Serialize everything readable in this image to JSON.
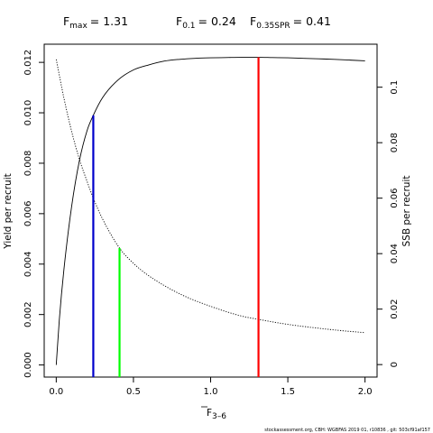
{
  "chart_data": {
    "type": "line",
    "title": {
      "fmax_label": "F",
      "fmax_sub": "max",
      "fmax_value": "= 1.31",
      "f01_label": "F",
      "f01_sub": "0.1",
      "f01_value": "= 0.24",
      "f35_label": "F",
      "f35_sub": "0.35SPR",
      "f35_value": "= 0.41"
    },
    "xlabel": "F",
    "xlabel_sub": "3–6",
    "ylabel_left": "Yield per recruit",
    "ylabel_right": "SSB per recruit",
    "xlim": [
      -0.078,
      2.078
    ],
    "ylim_left": [
      -0.00048,
      0.01272
    ],
    "ylim_right": [
      -0.0045,
      0.1155
    ],
    "x_ticks": [
      "0.0",
      "0.5",
      "1.0",
      "1.5",
      "2.0"
    ],
    "y_left_ticks": [
      "0.000",
      "0.002",
      "0.004",
      "0.006",
      "0.008",
      "0.010",
      "0.012"
    ],
    "y_right_ticks": [
      "0",
      "0.02",
      "0.04",
      "0.06",
      "0.08",
      "0.1"
    ],
    "series": [
      {
        "name": "Yield per recruit",
        "axis": "left",
        "style": "solid",
        "color": "#000000",
        "x": [
          0,
          0.02,
          0.05,
          0.1,
          0.15,
          0.2,
          0.24,
          0.3,
          0.4,
          0.5,
          0.6,
          0.7,
          0.8,
          0.9,
          1.0,
          1.1,
          1.2,
          1.31,
          1.4,
          1.5,
          1.6,
          1.7,
          1.8,
          1.9,
          2.0
        ],
        "values": [
          0.0,
          0.0018,
          0.0038,
          0.0063,
          0.0081,
          0.0093,
          0.0099,
          0.0106,
          0.0113,
          0.0117,
          0.0119,
          0.01205,
          0.01212,
          0.01216,
          0.01218,
          0.01219,
          0.0122,
          0.0122,
          0.01219,
          0.01218,
          0.01216,
          0.01214,
          0.01212,
          0.01209,
          0.01206
        ]
      },
      {
        "name": "SSB per recruit",
        "axis": "right",
        "style": "dotted",
        "color": "#000000",
        "x": [
          0,
          0.05,
          0.1,
          0.15,
          0.2,
          0.24,
          0.3,
          0.41,
          0.5,
          0.6,
          0.8,
          1.0,
          1.2,
          1.31,
          1.5,
          1.8,
          2.0
        ],
        "values": [
          0.11,
          0.096,
          0.084,
          0.074,
          0.066,
          0.06,
          0.0525,
          0.042,
          0.0365,
          0.032,
          0.0255,
          0.021,
          0.0175,
          0.0163,
          0.0145,
          0.0125,
          0.0115
        ]
      }
    ],
    "reference_lines": [
      {
        "name": "Fmax",
        "x": 1.31,
        "y": 0.0122,
        "axis": "left",
        "color": "#ff0000"
      },
      {
        "name": "F0.1",
        "x": 0.24,
        "y": 0.0099,
        "axis": "left",
        "color": "#0000cc"
      },
      {
        "name": "F0.35SPR",
        "x": 0.41,
        "y": 0.042,
        "axis": "right",
        "color": "#00ff00"
      }
    ]
  },
  "footer": {
    "credit": "stockassessment.org, CBH: WGBFAS 2019 01, r10836 , git: 503cf91af157"
  }
}
